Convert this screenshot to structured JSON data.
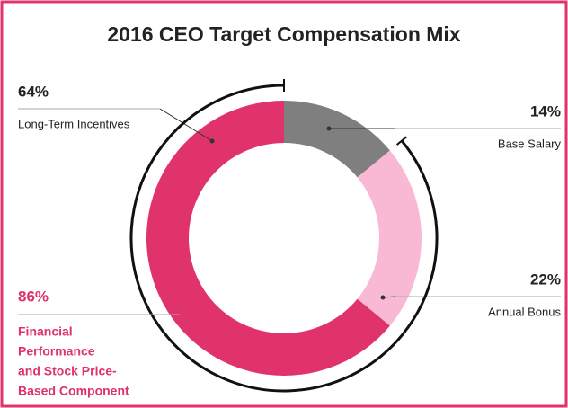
{
  "chart_data": {
    "type": "pie",
    "title": "2016 CEO Target Compensation Mix",
    "categories": [
      "Base Salary",
      "Annual Bonus",
      "Long-Term Incentives"
    ],
    "values": [
      14,
      22,
      64
    ],
    "value_labels": [
      "14%",
      "22%",
      "64%"
    ],
    "colors": [
      "#7f7f7f",
      "#f9b9d4",
      "#e0336b"
    ],
    "donut": true,
    "annotation": {
      "value": 86,
      "label": "86%",
      "color": "#e0336b",
      "text": [
        "Financial",
        "Performance",
        "and Stock Price-",
        "Based Component"
      ]
    }
  }
}
